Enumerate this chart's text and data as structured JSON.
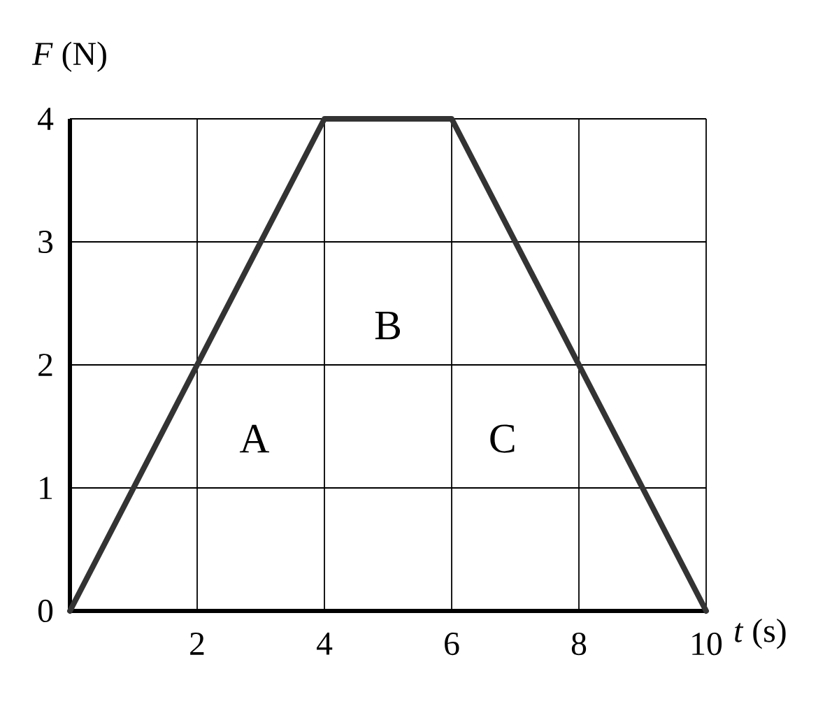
{
  "chart_data": {
    "type": "line",
    "xlabel": "*t* (s)",
    "ylabel": "*F* (N)",
    "x": [
      0,
      4,
      6,
      10
    ],
    "series": [
      {
        "color": "#333333",
        "values": [
          0,
          4,
          4,
          0
        ]
      }
    ],
    "xlim": [
      0,
      10
    ],
    "ylim": [
      0,
      4
    ],
    "xticks": [
      {
        "value": 0,
        "label": null
      },
      2,
      4,
      6,
      8,
      10
    ],
    "yticks": [
      0,
      1,
      2,
      3,
      4
    ],
    "grid": true,
    "marker": "none",
    "line_style": "solid",
    "annotations": [
      "A",
      "B",
      "C"
    ]
  }
}
